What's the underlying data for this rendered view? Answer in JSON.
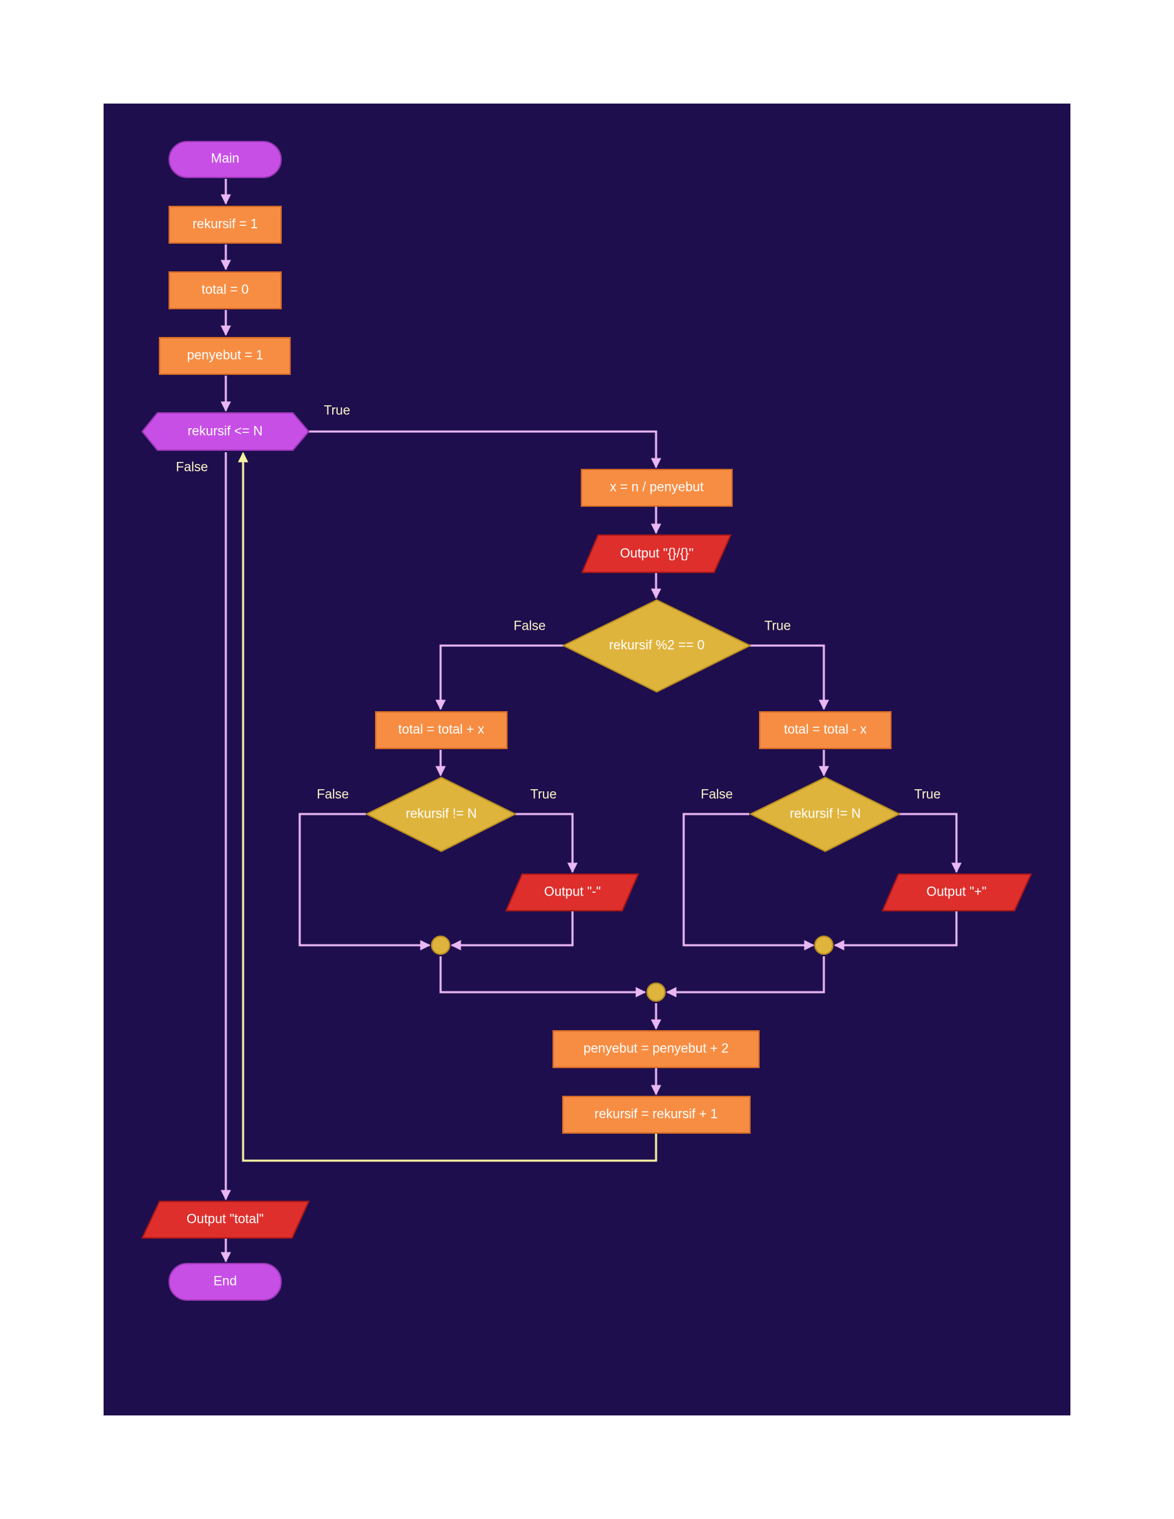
{
  "colors": {
    "background": "#1e0e4e",
    "page": "#ffffff",
    "terminal": "#c84fe6",
    "terminal_border": "#9b37b5",
    "process": "#f78d43",
    "process_border": "#d36a25",
    "io": "#de2f2c",
    "io_border": "#a71717",
    "decision": "#dfb43d",
    "decision_border": "#b88d1f",
    "connector": "#dfb43d",
    "edge": "#e9b7f3",
    "loop_edge": "#f7f3a0",
    "label": "#fdf6c8"
  },
  "nodes": {
    "main": "Main",
    "init_rekursif": "rekursif = 1",
    "init_total": "total = 0",
    "init_penyebut": "penyebut = 1",
    "loop_cond": "rekursif <= N",
    "calc_x": "x = n / penyebut",
    "output_fraction": "Output \"{}/{}\"",
    "parity_cond": "rekursif %2 == 0",
    "total_plus": "total = total + x",
    "total_minus": "total = total - x",
    "not_last_left": "rekursif != N",
    "not_last_right": "rekursif != N",
    "output_minus": "Output \"-\"",
    "output_plus": "Output \"+\"",
    "inc_penyebut": "penyebut = penyebut + 2",
    "inc_rekursif": "rekursif = rekursif + 1",
    "output_total": "Output \"total\"",
    "end": "End"
  },
  "edge_labels": {
    "loop_true": "True",
    "loop_false": "False",
    "parity_false": "False",
    "parity_true": "True",
    "left_false": "False",
    "left_true": "True",
    "right_false": "False",
    "right_true": "True"
  }
}
